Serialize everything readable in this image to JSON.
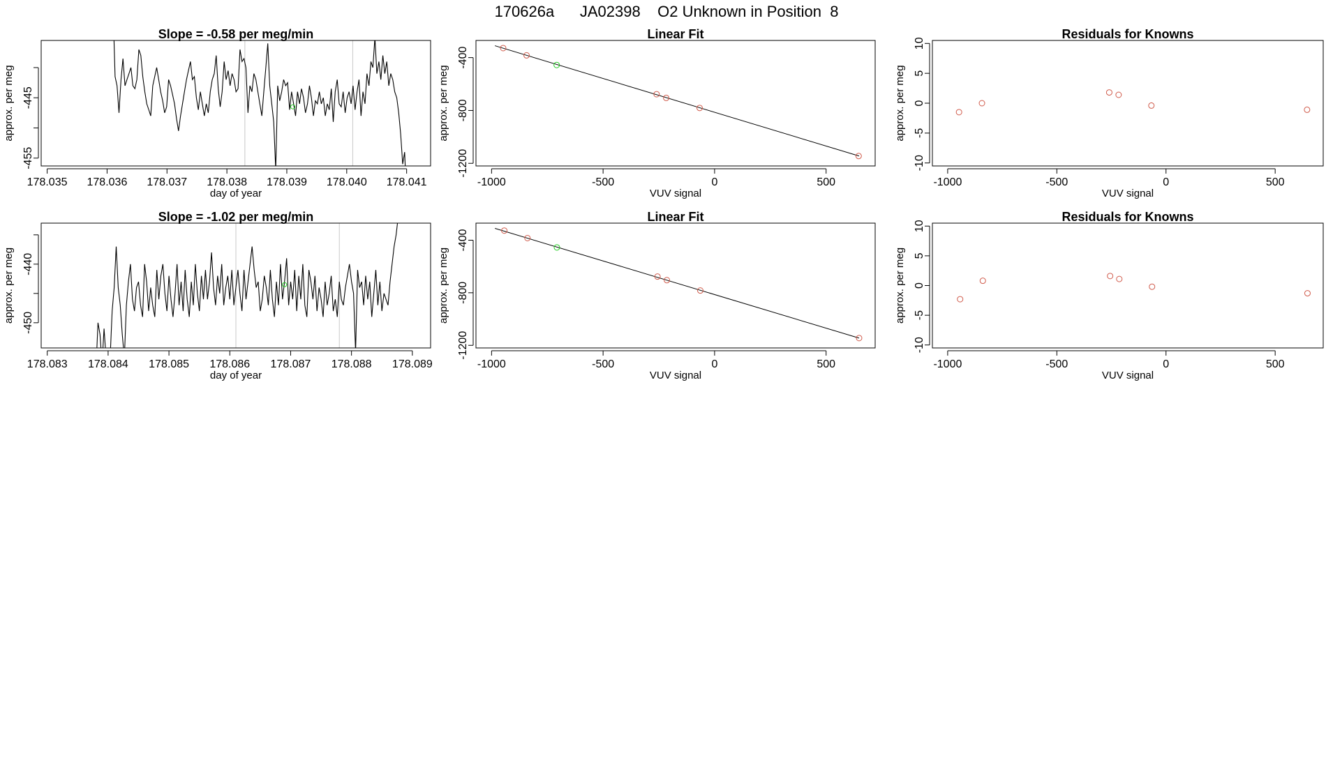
{
  "page": {
    "title": "170626a      JA02398    O2 Unknown in Position  8"
  },
  "colors": {
    "line": "#000000",
    "known_point": "#d05a4a",
    "unknown_point": "#22cc22",
    "marker_line": "#c8c8c8"
  },
  "chart_data": [
    {
      "type": "line",
      "title": "Slope =  -0.58  per meg/min",
      "xlabel": "day of year",
      "ylabel": "approx. per meg",
      "xlim": [
        178.0349,
        178.0414
      ],
      "ylim": [
        -456.3,
        -435.5
      ],
      "xticks": [
        178.035,
        178.036,
        178.037,
        178.038,
        178.039,
        178.04,
        178.041
      ],
      "xtick_labels": [
        "178.035",
        "178.036",
        "178.037",
        "178.038",
        "178.039",
        "178.040",
        "178.041"
      ],
      "yticks": [
        -440,
        -445,
        -450,
        -455
      ],
      "ytick_labels": [
        "",
        "-445",
        "",
        "-455"
      ],
      "vlines": [
        178.0383,
        178.0401
      ],
      "unknown_marker": {
        "x": 178.0391,
        "y": -446.5
      },
      "series": [
        {
          "x_start": 178.0361,
          "x_end": 178.041,
          "values": [
            -430,
            -441.5,
            -443,
            -447.5,
            -442,
            -438.5,
            -443,
            -442,
            -441,
            -440,
            -443,
            -443.5,
            -442,
            -437,
            -438,
            -441.5,
            -444,
            -446,
            -447,
            -448,
            -443,
            -441.5,
            -440,
            -442,
            -444,
            -445.5,
            -447.5,
            -446.5,
            -442,
            -443,
            -444.5,
            -446,
            -448.5,
            -450.5,
            -448,
            -446,
            -444,
            -442,
            -440.5,
            -439,
            -442,
            -441.5,
            -445,
            -447,
            -444,
            -446,
            -448,
            -446,
            -447.5,
            -444,
            -442,
            -441,
            -438,
            -443.5,
            -446.5,
            -444,
            -439,
            -442,
            -440.5,
            -443,
            -441,
            -442,
            -444,
            -443.5,
            -437,
            -439,
            -438.5,
            -440,
            -447.5,
            -443,
            -444,
            -441,
            -442,
            -444,
            -446,
            -448,
            -444,
            -440,
            -436,
            -443,
            -446,
            -449,
            -457,
            -443,
            -445.5,
            -444,
            -442,
            -443,
            -442.5,
            -447,
            -444,
            -446,
            -448,
            -444,
            -446,
            -443.5,
            -445,
            -447.5,
            -446,
            -443,
            -445,
            -448,
            -445.5,
            -446,
            -444,
            -446,
            -445,
            -448,
            -446,
            -447,
            -443.5,
            -449,
            -444,
            -442,
            -446,
            -446.5,
            -444,
            -447.5,
            -445,
            -444,
            -446,
            -443,
            -447,
            -444,
            -442,
            -448,
            -444,
            -446,
            -441,
            -443,
            -439,
            -440,
            -435,
            -441,
            -439,
            -442,
            -438,
            -441,
            -439,
            -443,
            -441,
            -442,
            -444,
            -445,
            -447.5,
            -451,
            -456,
            -454,
            -462
          ]
        }
      ]
    },
    {
      "type": "scatter",
      "title": "Linear Fit",
      "xlabel": "VUV signal",
      "ylabel": "approx. per meg",
      "xlim": [
        -1070,
        720
      ],
      "ylim": [
        -1220,
        -270
      ],
      "xticks": [
        -1000,
        -500,
        0,
        500
      ],
      "xtick_labels": [
        "-1000",
        "-500",
        "0",
        "500"
      ],
      "yticks": [
        -400,
        -800,
        -1200
      ],
      "ytick_labels": [
        "-400",
        "-800",
        "-1200"
      ],
      "fit_line": {
        "x": [
          -985,
          648
        ],
        "y": [
          -310,
          -1145
        ]
      },
      "known_points": [
        [
          -948,
          -328
        ],
        [
          -843,
          -383
        ],
        [
          -260,
          -677
        ],
        [
          -217,
          -705
        ],
        [
          -67,
          -781
        ],
        [
          646,
          -1145
        ]
      ],
      "unknown_points": [
        [
          -708,
          -456
        ]
      ]
    },
    {
      "type": "scatter",
      "title": "Residuals for Knowns",
      "xlabel": "VUV signal",
      "ylabel": "approx. per meg",
      "xlim": [
        -1070,
        720
      ],
      "ylim": [
        -10.5,
        10.5
      ],
      "xticks": [
        -1000,
        -500,
        0,
        500
      ],
      "xtick_labels": [
        "-1000",
        "-500",
        "0",
        "500"
      ],
      "yticks": [
        10,
        5,
        0,
        -5,
        -10
      ],
      "ytick_labels": [
        "10",
        "5",
        "0",
        "-5",
        "-10"
      ],
      "known_points": [
        [
          -948,
          -1.5
        ],
        [
          -843,
          0.0
        ],
        [
          -260,
          1.8
        ],
        [
          -217,
          1.4
        ],
        [
          -67,
          -0.4
        ],
        [
          646,
          -1.1
        ]
      ]
    },
    {
      "type": "line",
      "title": "Slope =  -1.02  per meg/min",
      "xlabel": "day of year",
      "ylabel": "approx. per meg",
      "xlim": [
        178.0829,
        178.0893
      ],
      "ylim": [
        -454.3,
        -433
      ],
      "xticks": [
        178.083,
        178.084,
        178.085,
        178.086,
        178.087,
        178.088,
        178.089
      ],
      "xtick_labels": [
        "178.083",
        "178.084",
        "178.085",
        "178.086",
        "178.087",
        "178.088",
        "178.089"
      ],
      "yticks": [
        -435,
        -440,
        -445,
        -450
      ],
      "ytick_labels": [
        "",
        "-440",
        "",
        "-450"
      ],
      "vlines": [
        178.0861,
        178.0878
      ],
      "unknown_marker": {
        "x": 178.0869,
        "y": -443.5
      },
      "series": [
        {
          "x_start": 178.0838,
          "x_end": 178.0888,
          "values": [
            -458,
            -450,
            -452,
            -457,
            -451,
            -456,
            -462,
            -456,
            -448,
            -444,
            -437,
            -444,
            -447,
            -452,
            -456,
            -447,
            -443,
            -440,
            -446,
            -448,
            -444,
            -443,
            -447,
            -449,
            -440,
            -443,
            -448,
            -444,
            -447,
            -449,
            -441,
            -446,
            -442,
            -440,
            -445,
            -448,
            -442,
            -446,
            -449,
            -445,
            -440,
            -447,
            -443,
            -448,
            -441,
            -446,
            -449,
            -443,
            -447,
            -440,
            -445,
            -448,
            -442,
            -446,
            -441,
            -446,
            -443,
            -438,
            -444,
            -447,
            -442,
            -445,
            -440,
            -447,
            -444,
            -442,
            -446,
            -441,
            -447,
            -444,
            -441,
            -445,
            -448,
            -441,
            -446,
            -443,
            -440,
            -437,
            -441,
            -444,
            -443,
            -448,
            -446,
            -442,
            -444,
            -447,
            -441,
            -446,
            -449,
            -443,
            -447,
            -440,
            -446,
            -443,
            -439,
            -447,
            -443,
            -446,
            -441,
            -448,
            -442,
            -446,
            -440,
            -447,
            -449,
            -441,
            -443,
            -446,
            -442,
            -448,
            -444,
            -446,
            -449,
            -443,
            -447,
            -445,
            -442,
            -448,
            -446,
            -449,
            -443,
            -446,
            -447,
            -444,
            -442,
            -440,
            -443,
            -445,
            -455,
            -441,
            -444,
            -443,
            -447,
            -442,
            -446,
            -443,
            -449,
            -445,
            -441,
            -447,
            -443,
            -448,
            -445,
            -446,
            -447,
            -443,
            -440,
            -437,
            -435,
            -432,
            -430
          ]
        }
      ]
    },
    {
      "type": "scatter",
      "title": "Linear Fit",
      "xlabel": "VUV signal",
      "ylabel": "approx. per meg",
      "xlim": [
        -1070,
        720
      ],
      "ylim": [
        -1220,
        -270
      ],
      "xticks": [
        -1000,
        -500,
        0,
        500
      ],
      "xtick_labels": [
        "-1000",
        "-500",
        "0",
        "500"
      ],
      "yticks": [
        -400,
        -800,
        -1200
      ],
      "ytick_labels": [
        "-400",
        "-800",
        "-1200"
      ],
      "fit_line": {
        "x": [
          -985,
          648
        ],
        "y": [
          -310,
          -1145
        ]
      },
      "known_points": [
        [
          -943,
          -327
        ],
        [
          -839,
          -384
        ],
        [
          -256,
          -677
        ],
        [
          -214,
          -704
        ],
        [
          -64,
          -783
        ],
        [
          648,
          -1145
        ]
      ],
      "unknown_points": [
        [
          -707,
          -455
        ]
      ]
    },
    {
      "type": "scatter",
      "title": "Residuals for Knowns",
      "xlabel": "VUV signal",
      "ylabel": "approx. per meg",
      "xlim": [
        -1070,
        720
      ],
      "ylim": [
        -10.5,
        10.5
      ],
      "xticks": [
        -1000,
        -500,
        0,
        500
      ],
      "xtick_labels": [
        "-1000",
        "-500",
        "0",
        "500"
      ],
      "yticks": [
        10,
        5,
        0,
        -5,
        -10
      ],
      "ytick_labels": [
        "10",
        "5",
        "0",
        "-5",
        "-10"
      ],
      "known_points": [
        [
          -943,
          -2.3
        ],
        [
          -839,
          0.8
        ],
        [
          -256,
          1.6
        ],
        [
          -214,
          1.1
        ],
        [
          -64,
          -0.2
        ],
        [
          648,
          -1.3
        ]
      ]
    }
  ]
}
